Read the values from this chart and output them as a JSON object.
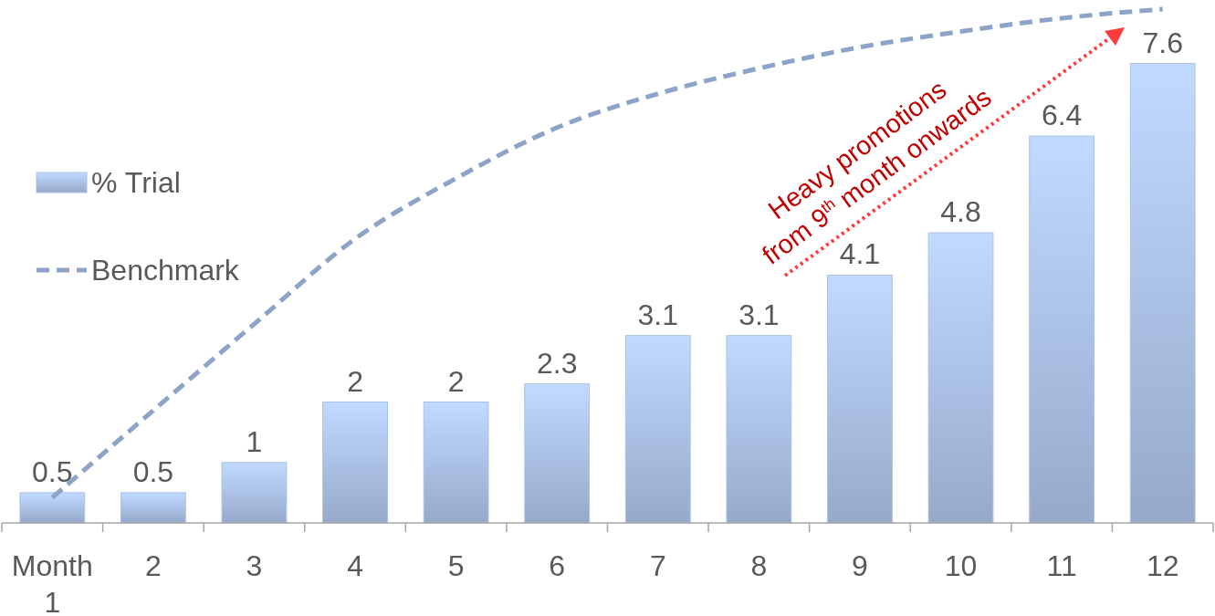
{
  "chart_data": {
    "type": "bar",
    "categories": [
      "Month 1",
      "2",
      "3",
      "4",
      "5",
      "6",
      "7",
      "8",
      "9",
      "10",
      "11",
      "12"
    ],
    "series": [
      {
        "name": "% Trial",
        "color": "#aac0e6",
        "values": [
          0.5,
          0.5,
          1,
          2,
          2,
          2.3,
          3.1,
          3.1,
          4.1,
          4.8,
          6.4,
          7.6
        ],
        "value_labels": [
          "0.5",
          "0.5",
          "1",
          "2",
          "2",
          "2.3",
          "3.1",
          "3.1",
          "4.1",
          "4.8",
          "6.4",
          "7.6"
        ]
      },
      {
        "name": "Benchmark",
        "type": "line",
        "color": "#8ea3c8",
        "line_style": "dashed",
        "marker": "none",
        "values": [
          0.42,
          1.86,
          3.29,
          4.7,
          5.7,
          6.54,
          7.1,
          7.52,
          7.87,
          8.13,
          8.35,
          8.5
        ]
      }
    ],
    "legend": "left",
    "annotations": [
      "Heavy promotions from 9$^{th}$ month onwards"
    ]
  }
}
